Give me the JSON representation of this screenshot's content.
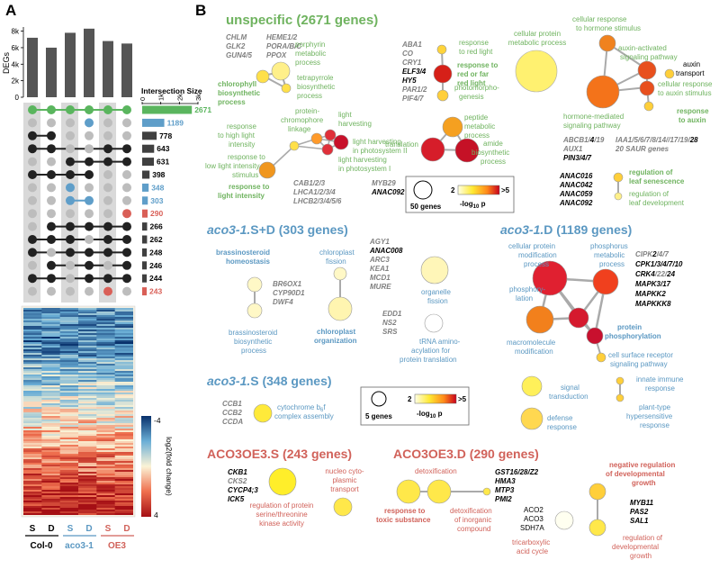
{
  "panel_a": {
    "label": "A",
    "upset": {
      "y_label": "DEGs",
      "y_ticks": [
        "8k",
        "6k",
        "4k",
        "2k",
        "0"
      ],
      "bar_values_k": [
        7.2,
        6.0,
        7.8,
        8.3,
        6.8,
        6.5
      ],
      "intersection_title": "Intersection Size",
      "x_ticks": [
        "0",
        "1k",
        "2k",
        "3k"
      ],
      "rows": [
        {
          "value": "2671",
          "count": 2671,
          "color": "#5ab55e"
        },
        {
          "value": "1189",
          "count": 1189,
          "color": "#5f9ec9"
        },
        {
          "value": "778",
          "count": 778,
          "color": "#404040"
        },
        {
          "value": "643",
          "count": 643,
          "color": "#404040"
        },
        {
          "value": "631",
          "count": 631,
          "color": "#404040"
        },
        {
          "value": "398",
          "count": 398,
          "color": "#404040"
        },
        {
          "value": "348",
          "count": 348,
          "color": "#5f9ec9"
        },
        {
          "value": "303",
          "count": 303,
          "color": "#5f9ec9"
        },
        {
          "value": "290",
          "count": 290,
          "color": "#d95f57"
        },
        {
          "value": "266",
          "count": 266,
          "color": "#404040"
        },
        {
          "value": "262",
          "count": 262,
          "color": "#404040"
        },
        {
          "value": "248",
          "count": 248,
          "color": "#404040"
        },
        {
          "value": "246",
          "count": 246,
          "color": "#404040"
        },
        {
          "value": "244",
          "count": 244,
          "color": "#404040"
        },
        {
          "value": "243",
          "count": 243,
          "color": "#d95f57"
        }
      ]
    },
    "heatmap": {
      "legend_title": "log2(fold change)",
      "legend_max": "-4",
      "legend_min": "4"
    },
    "columns": [
      "S",
      "D",
      "S",
      "D",
      "S",
      "D"
    ],
    "groups": [
      "Col-0",
      "aco3-1",
      "OE3"
    ]
  },
  "panel_b": {
    "label": "B",
    "colors": {
      "green": "#6fb35f",
      "blue": "#5b98c2",
      "red": "#d1625a",
      "gray": "#808080"
    },
    "unspecific": {
      "title": "unspecific (2671 genes)",
      "genes_tetrapyrrole": [
        "CHLM",
        "GLK2",
        "GUN4/5"
      ],
      "genes_tetrapyrrole_b": [
        "HEME1/2",
        "PORA/B/C",
        "PPOX"
      ],
      "porphyrin": "porphyrin metabolic process",
      "tetrapyrrole": "tetrapyrrole biosynthetic process",
      "chlorophyll": "chlorophyll biosynthetic process",
      "genes_red_light": [
        "ABA1",
        "CO",
        "CRY1"
      ],
      "genes_red_light_bold": [
        "ELF3/4",
        "HY5"
      ],
      "genes_red_light_b": [
        "PAR1/2",
        "PIF4/7"
      ],
      "response_red_light": "response to red light",
      "response_red_far_red": "response to red or far red light",
      "photomorphogenesis": "photomorpho-genesis",
      "cellular_protein_metabolic": "cellular protein metabolic process",
      "peptide_metabolic": "peptide metabolic process",
      "translation": "translation",
      "amide_biosynthetic": "amide biosynthetic process",
      "response_high_light": "response to high light intensity",
      "protein_chromophore": "protein-chromophore linkage",
      "light_harvesting": "light harvesting",
      "light_harvesting_ps2": "light harvesting in photosystem II",
      "light_harvesting_ps1": "light harvesting in photosystem I",
      "response_low_light": "response to low light intensity stimulus",
      "response_light_intensity": "response to light intensity",
      "genes_light": [
        "CAB1/2/3",
        "LHCA1/2/3/4",
        "LHCB2/3/4/5/6"
      ],
      "gene_myb29": "MYB29",
      "gene_anac092": "ANAC092",
      "cellular_response_hormone": "cellular response to hormone stimulus",
      "auxin_activated": "auxin-activated signaling pathway",
      "auxin_transport": "auxin transport",
      "cellular_response_auxin": "cellular response to auxin stimulus",
      "hormone_mediated": "hormone-mediated signaling pathway",
      "response_auxin": "response to auxin",
      "genes_auxin_abcb": "ABCB1/4/19",
      "genes_auxin_iaa": "IAA1/5/6/7/8/14//17/19/28",
      "genes_auxin_aux": "AUX1",
      "genes_auxin_pin": "PIN3/4/7",
      "genes_auxin_saur": "20 SAUR genes",
      "genes_senescence": [
        "ANAC016",
        "ANAC042",
        "ANAC059",
        "ANAC092"
      ],
      "leaf_senescence": "regulation of leaf senescence",
      "leaf_development": "regulation of leaf development",
      "legend_size": "50 genes",
      "legend_low": "2",
      "legend_high": ">5",
      "legend_axis": "-log10 p"
    },
    "aco_sd": {
      "title": "aco3-1.S+D (303 genes)",
      "brassinosteroid_homeostasis": "brassinosteroid homeostasis",
      "genes_br": [
        "BR6OX1",
        "CYP90D1",
        "DWF4"
      ],
      "brassinosteroid_biosynthetic": "brassinosteroid biosynthetic process",
      "chloroplast_fission": "chloroplast fission",
      "chloroplast_organization": "chloroplast organization",
      "genes_chloroplast_a": "AGY1",
      "genes_chloroplast_bold": "ANAC008",
      "genes_chloroplast_b": [
        "ARC3",
        "KEA1",
        "MCD1",
        "MURE"
      ],
      "organelle_fission": "organelle fission",
      "genes_trna": [
        "EDD1",
        "NS2",
        "SRS"
      ],
      "trna_aminoacylation": "tRNA amino-acylation for protein translation"
    },
    "aco_s": {
      "title": "aco3-1.S (348 genes)",
      "genes_cyt": [
        "CCB1",
        "CCB2",
        "CCDA"
      ],
      "cytochrome": "cytochrome b6f complex assembly",
      "legend_size": "5 genes",
      "legend_low": "2",
      "legend_high": ">5",
      "legend_axis": "-log10 p"
    },
    "aco_d": {
      "title": "aco3-1.D (1189 genes)",
      "cellular_protein_modification": "cellular protein modification process",
      "phosphorus_metabolic": "phosphorus metabolic process",
      "phosphorylation": "phosphory-lation",
      "macromolecule_modification": "macromolecule modification",
      "protein_phosphorylation": "protein phosphorylation",
      "cell_surface_receptor": "cell surface receptor signaling pathway",
      "genes_kinase": [
        "CIPK2/4/7",
        "CPK1/3/4/7/10",
        "CRK4/22/24",
        "MAPK3/17",
        "MAPKK2",
        "MAPKKK8"
      ],
      "signal_transduction": "signal transduction",
      "defense_response": "defense response",
      "innate_immune": "innate immune response",
      "hypersensitive": "plant-type hypersensitive response"
    },
    "oe_s": {
      "title": "ACO3OE3.S (243 genes)",
      "genes": [
        "CKB1",
        "CKS2",
        "CYCP4;3",
        "ICK5"
      ],
      "nucleocytoplasmic": "nucleo cyto-plasmic transport",
      "serine_threonine": "regulation of protein serine/threonine kinase activity"
    },
    "oe_d": {
      "title": "ACO3OE3.D (290 genes)",
      "detoxification": "detoxification",
      "response_toxic": "response to toxic substance",
      "detox_inorganic": "detoxification of inorganic compound",
      "genes_detox": [
        "GST16/28/Z2",
        "HMA3",
        "MTP3",
        "PMI2"
      ],
      "genes_tca": [
        "ACO2",
        "ACO3",
        "SDH7A"
      ],
      "tca": "tricarboxylic acid cycle",
      "negative_dev": "negative regulation of developmental growth",
      "genes_dev": [
        "MYB11",
        "PAS2",
        "SAL1"
      ],
      "reg_dev": "regulation of developmental growth"
    }
  }
}
